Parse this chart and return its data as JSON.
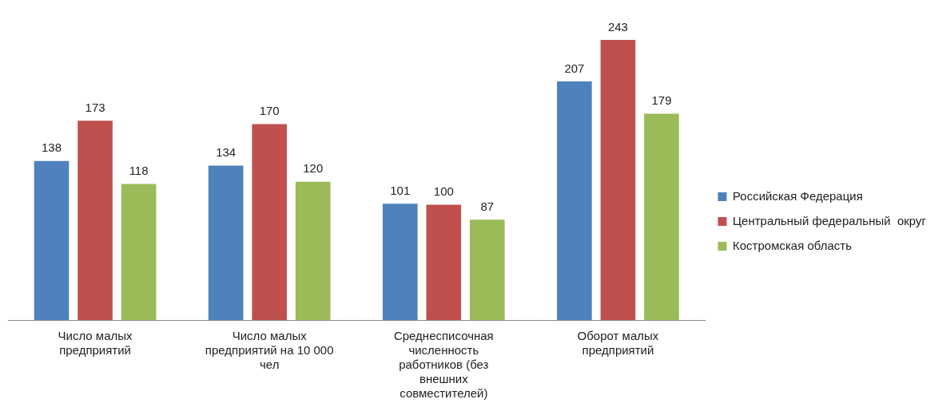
{
  "chart_data": {
    "type": "bar",
    "categories": [
      "Число малых предприятий",
      "Число малых предприятий  на 10 000 чел",
      "Среднесписочная численность работников (без внешних совместителей)",
      "Оборот малых предприятий"
    ],
    "series": [
      {
        "name": "Российская Федерация",
        "color": "#4f81bd",
        "values": [
          138,
          134,
          101,
          207
        ]
      },
      {
        "name": "Центральный федеральный  округ",
        "color": "#c0504d",
        "values": [
          173,
          170,
          100,
          243
        ]
      },
      {
        "name": "Костромская область",
        "color": "#9bbb59",
        "values": [
          118,
          120,
          87,
          179
        ]
      }
    ],
    "data_labels": true,
    "legend": "right",
    "grid": false,
    "tick_labels": "x"
  }
}
